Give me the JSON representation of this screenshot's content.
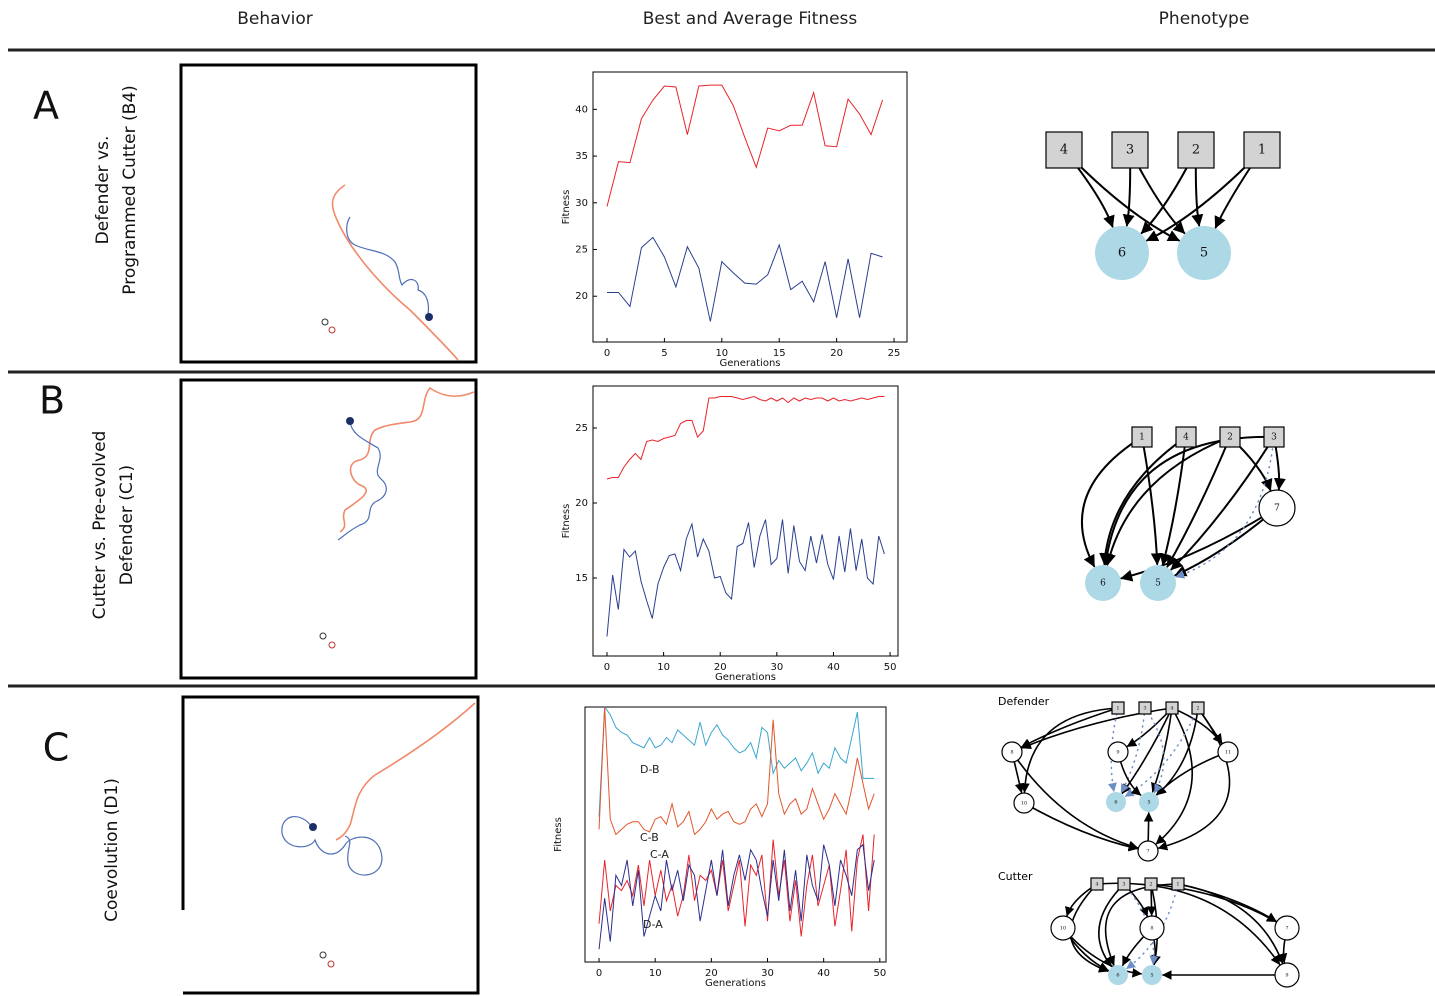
{
  "headers": [
    "Behavior",
    "Best and Average Fitness",
    "Phenotype"
  ],
  "rows": [
    {
      "label": "A",
      "title": [
        "Defender vs.",
        "Programmed Cutter (B4)"
      ]
    },
    {
      "label": "B",
      "title": [
        "Cutter vs. Pre-evolved",
        "Defender (C1)"
      ]
    },
    {
      "label": "C",
      "title": [
        "Coevolution (D1)"
      ]
    }
  ],
  "chart_data": [
    {
      "type": "line",
      "xlabel": "Generations",
      "ylabel": "Fitness",
      "x": [
        0,
        1,
        2,
        3,
        4,
        5,
        6,
        7,
        8,
        9,
        10,
        11,
        12,
        13,
        14,
        15,
        16,
        17,
        18,
        19,
        20,
        21,
        22,
        23,
        24
      ],
      "xlim": [
        -1.22,
        26.13
      ],
      "xticks": [
        0,
        5,
        10,
        15,
        20,
        25
      ],
      "ylim": [
        15.1,
        44
      ],
      "yticks": [
        20,
        25,
        30,
        35,
        40
      ],
      "series": [
        {
          "color": "#e8242b",
          "values": [
            29.6,
            34.4,
            34.3,
            39,
            41,
            42.5,
            42.4,
            37.3,
            42.5,
            42.6,
            42.6,
            40.4,
            37,
            33.8,
            38,
            37.7,
            38.3,
            38.3,
            41.8,
            36.1,
            36,
            41.1,
            39.5,
            37.3,
            41
          ]
        },
        {
          "color": "#2b3f8f",
          "values": [
            20.4,
            20.4,
            18.9,
            25.2,
            26.3,
            24.2,
            21,
            25.3,
            23,
            17.3,
            23.7,
            22.5,
            21.4,
            21.3,
            22.3,
            25.5,
            20.7,
            21.6,
            19.4,
            23.7,
            17.7,
            24,
            17.7,
            24.6,
            24.2
          ]
        }
      ]
    },
    {
      "type": "line",
      "xlabel": "Generations",
      "ylabel": "Fitness",
      "x": [
        0,
        1,
        2,
        3,
        4,
        5,
        6,
        7,
        8,
        9,
        10,
        11,
        12,
        13,
        14,
        15,
        16,
        17,
        18,
        19,
        20,
        21,
        22,
        23,
        24,
        25,
        26,
        27,
        28,
        29,
        30,
        31,
        32,
        33,
        34,
        35,
        36,
        37,
        38,
        39,
        40,
        41,
        42,
        43,
        44,
        45,
        46,
        47,
        48,
        49
      ],
      "xlim": [
        -2.47,
        51.4
      ],
      "xticks": [
        0,
        10,
        20,
        30,
        40,
        50
      ],
      "ylim": [
        9.8,
        27.8
      ],
      "yticks": [
        15,
        20,
        25
      ],
      "series": [
        {
          "color": "#e8242b",
          "values": [
            21.6,
            21.7,
            21.7,
            22.4,
            22.9,
            23.3,
            22.9,
            24.1,
            24.2,
            24.1,
            24.3,
            24.4,
            24.5,
            25.3,
            25.5,
            25.5,
            24.4,
            24.8,
            27,
            27,
            27.1,
            27.1,
            27.1,
            27,
            26.9,
            27,
            27.1,
            26.9,
            26.8,
            27,
            26.8,
            27,
            26.7,
            27,
            26.8,
            27,
            26.9,
            27,
            27,
            26.8,
            27,
            26.8,
            26.9,
            26.8,
            26.9,
            27,
            26.9,
            27,
            27.1,
            27.1
          ]
        },
        {
          "color": "#2b3f8f",
          "values": [
            11.1,
            15.2,
            12.9,
            16.9,
            16.4,
            16.8,
            14.8,
            13.5,
            12.3,
            14.6,
            15.7,
            16.5,
            16.6,
            15.5,
            17.6,
            18.6,
            16.4,
            17.6,
            16.8,
            15,
            15.1,
            14,
            13.6,
            17.1,
            17.3,
            18.7,
            15.7,
            17.8,
            18.9,
            15.9,
            16.3,
            18.9,
            15.3,
            18.5,
            16.1,
            15.5,
            17.8,
            16,
            17.9,
            15.9,
            14.9,
            17.8,
            15.4,
            18.3,
            15.5,
            17.6,
            15,
            14.6,
            17.8,
            16.6
          ]
        }
      ]
    },
    {
      "type": "line",
      "xlabel": "Generations",
      "ylabel": "Fitness",
      "x": [
        0,
        1,
        2,
        3,
        4,
        5,
        6,
        7,
        8,
        9,
        10,
        11,
        12,
        13,
        14,
        15,
        16,
        17,
        18,
        19,
        20,
        21,
        22,
        23,
        24,
        25,
        26,
        27,
        28,
        29,
        30,
        31,
        32,
        33,
        34,
        35,
        36,
        37,
        38,
        39,
        40,
        41,
        42,
        43,
        44,
        45,
        46,
        47,
        48,
        49
      ],
      "xlim": [
        -2.5,
        51.1
      ],
      "xticks": [
        0,
        10,
        20,
        30,
        40,
        50
      ],
      "ylim": [
        0,
        100
      ],
      "series": [
        {
          "name": "D-B",
          "color": "#3aa7d0",
          "values": [
            57,
            100,
            97,
            92,
            90,
            89,
            86,
            85,
            84,
            88,
            84,
            85,
            88,
            86,
            91,
            89,
            87,
            85,
            94,
            85,
            90,
            93,
            89,
            87,
            84,
            82,
            83,
            86,
            80,
            92,
            90,
            74,
            79,
            76,
            78,
            80,
            75,
            78,
            82,
            74,
            78,
            76,
            84,
            80,
            78,
            88,
            98,
            72,
            72,
            72
          ]
        },
        {
          "name": "C-B",
          "color": "#e2562a",
          "values": [
            52,
            100,
            56,
            50,
            52,
            54,
            55,
            55,
            52,
            51,
            56,
            57,
            54,
            62,
            53,
            55,
            59,
            50,
            52,
            55,
            60,
            56,
            58,
            59,
            55,
            54,
            55,
            60,
            62,
            57,
            62,
            95,
            66,
            58,
            62,
            64,
            58,
            60,
            68,
            62,
            56,
            60,
            66,
            62,
            58,
            68,
            80,
            70,
            60,
            66
          ]
        },
        {
          "name": "C-A",
          "color": "#e8242b",
          "values": [
            15,
            40,
            20,
            30,
            28,
            32,
            26,
            38,
            22,
            40,
            26,
            36,
            24,
            30,
            18,
            26,
            42,
            24,
            34,
            32,
            36,
            26,
            40,
            20,
            30,
            40,
            14,
            38,
            34,
            42,
            16,
            48,
            26,
            40,
            16,
            32,
            10,
            30,
            42,
            22,
            30,
            38,
            14,
            28,
            44,
            12,
            40,
            50,
            20,
            50
          ]
        },
        {
          "name": "D-A",
          "color": "#2b2f8f",
          "values": [
            5,
            25,
            8,
            34,
            30,
            40,
            22,
            36,
            10,
            18,
            26,
            20,
            40,
            28,
            36,
            24,
            38,
            34,
            16,
            28,
            40,
            26,
            44,
            22,
            34,
            42,
            32,
            44,
            40,
            28,
            18,
            40,
            24,
            44,
            20,
            36,
            16,
            42,
            30,
            24,
            46,
            38,
            22,
            40,
            34,
            26,
            44,
            46,
            28,
            40
          ]
        }
      ]
    }
  ],
  "phenotypes": [
    {
      "nodes": [
        "4",
        "3",
        "2",
        "1",
        "6",
        "5"
      ]
    },
    {
      "nodes": [
        "1",
        "4",
        "2",
        "3",
        "7",
        "6",
        "5"
      ]
    },
    {
      "label": "Defender",
      "nodes": [
        "1",
        "3",
        "4",
        "2",
        "8",
        "9",
        "11",
        "10",
        "7",
        "6",
        "5"
      ]
    },
    {
      "label": "Cutter",
      "nodes": [
        "4",
        "3",
        "2",
        "1",
        "10",
        "8",
        "7",
        "9",
        "6",
        "5"
      ]
    }
  ]
}
